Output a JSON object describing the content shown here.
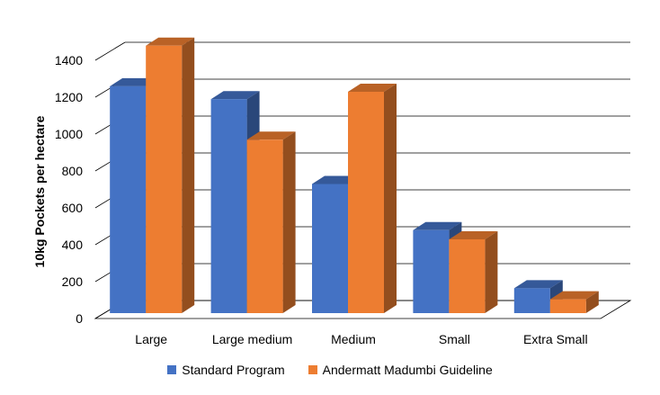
{
  "chart_data": {
    "type": "bar",
    "style": "3d-clustered-column",
    "categories": [
      "Large",
      "Large medium",
      "Medium",
      "Small",
      "Extra Small"
    ],
    "series": [
      {
        "name": "Standard Program",
        "color": "#4472C4",
        "values": [
          1230,
          1160,
          700,
          450,
          135
        ]
      },
      {
        "name": "Andermatt Madumbi Guideline",
        "color": "#ED7D31",
        "values": [
          1450,
          940,
          1200,
          400,
          75
        ]
      }
    ],
    "ylabel": "10kg Pockets per hectare",
    "xlabel": "",
    "ylim": [
      0,
      1400
    ],
    "yticks": [
      0,
      200,
      400,
      600,
      800,
      1000,
      1200,
      1400
    ],
    "grid": true,
    "legend_position": "bottom"
  }
}
